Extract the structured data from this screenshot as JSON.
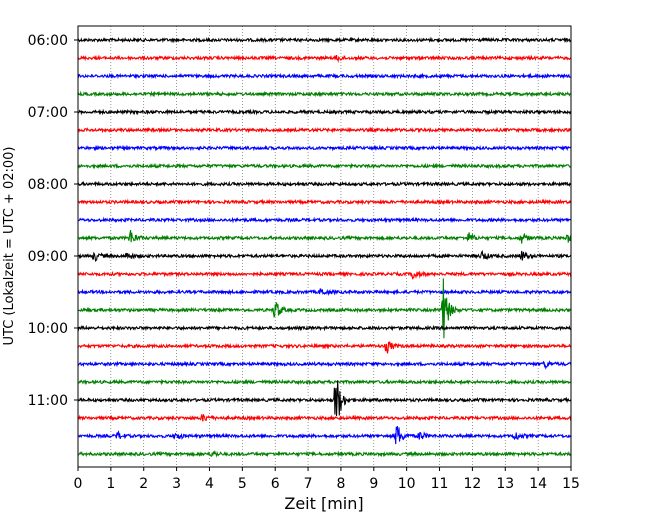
{
  "chart_data": {
    "type": "line",
    "subtype": "helicorder",
    "xlabel": "Zeit  [min]",
    "ylabel": "UTC (Lokalzeit = UTC + 02:00)",
    "xlim": [
      0,
      15
    ],
    "x_ticks": [
      0,
      1,
      2,
      3,
      4,
      5,
      6,
      7,
      8,
      9,
      10,
      11,
      12,
      13,
      14,
      15
    ],
    "y_tick_labels": [
      "06:00",
      "07:00",
      "08:00",
      "09:00",
      "10:00",
      "11:00"
    ],
    "trace_interval_min": 15,
    "grid": "vertical dotted at each minute",
    "colors": [
      "#000000",
      "#ff0000",
      "#0000ff",
      "#008000"
    ],
    "traces": [
      {
        "start": "06:00",
        "events": []
      },
      {
        "start": "06:15",
        "events": [
          {
            "x": 7.9,
            "amp": 3
          }
        ]
      },
      {
        "start": "06:30",
        "events": []
      },
      {
        "start": "06:45",
        "events": []
      },
      {
        "start": "07:00",
        "events": []
      },
      {
        "start": "07:15",
        "events": []
      },
      {
        "start": "07:30",
        "events": []
      },
      {
        "start": "07:45",
        "events": []
      },
      {
        "start": "08:00",
        "events": []
      },
      {
        "start": "08:15",
        "events": []
      },
      {
        "start": "08:30",
        "events": []
      },
      {
        "start": "08:45",
        "events": [
          {
            "x": 1.6,
            "amp": 8
          },
          {
            "x": 11.9,
            "amp": 5
          },
          {
            "x": 13.5,
            "amp": 5
          },
          {
            "x": 14.9,
            "amp": 4
          }
        ]
      },
      {
        "start": "09:00",
        "events": [
          {
            "x": 0.5,
            "amp": 5
          },
          {
            "x": 1.5,
            "amp": 4
          },
          {
            "x": 12.3,
            "amp": 5
          },
          {
            "x": 13.5,
            "amp": 5
          }
        ]
      },
      {
        "start": "09:15",
        "events": [
          {
            "x": 10.2,
            "amp": 6
          }
        ]
      },
      {
        "start": "09:30",
        "events": [
          {
            "x": 7.4,
            "amp": 4
          }
        ]
      },
      {
        "start": "09:45",
        "events": [
          {
            "x": 6.0,
            "amp": 12
          },
          {
            "x": 11.1,
            "amp": 38
          }
        ]
      },
      {
        "start": "10:00",
        "events": []
      },
      {
        "start": "10:15",
        "events": [
          {
            "x": 9.4,
            "amp": 7
          }
        ]
      },
      {
        "start": "10:30",
        "events": [
          {
            "x": 14.2,
            "amp": 4
          }
        ]
      },
      {
        "start": "10:45",
        "events": []
      },
      {
        "start": "11:00",
        "events": [
          {
            "x": 7.85,
            "amp": 34
          }
        ]
      },
      {
        "start": "11:15",
        "events": [
          {
            "x": 3.8,
            "amp": 4
          }
        ]
      },
      {
        "start": "11:30",
        "events": [
          {
            "x": 1.2,
            "amp": 4
          },
          {
            "x": 3.0,
            "amp": 4
          },
          {
            "x": 9.7,
            "amp": 14
          },
          {
            "x": 10.4,
            "amp": 5
          },
          {
            "x": 13.3,
            "amp": 5
          }
        ]
      },
      {
        "start": "11:45",
        "events": [
          {
            "x": 4.1,
            "amp": 3
          }
        ]
      }
    ]
  }
}
